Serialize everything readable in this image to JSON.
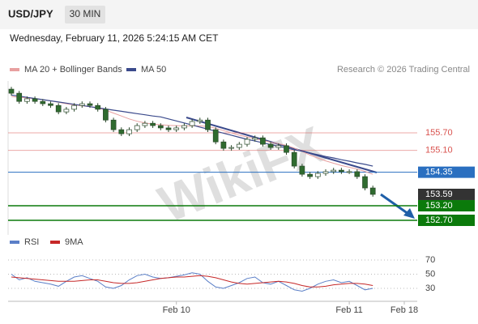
{
  "chart_data": [
    {
      "type": "candlestick",
      "title": "USD/JPY",
      "timeframe": "30 MIN",
      "subtitle": "Wednesday, February 11, 2026 5:24:15 AM CET",
      "credit": "Research © 2026 Trading Central",
      "watermark": "WikiFX",
      "up_color": "#ffffff",
      "down_color": "#2f6b2f",
      "wick_color": "#2b4a2b",
      "ylim": [
        152.2,
        157.48
      ],
      "open": [
        157.2,
        157.06,
        156.78,
        156.87,
        156.78,
        156.7,
        156.64,
        156.42,
        156.51,
        156.64,
        156.7,
        156.64,
        156.51,
        156.14,
        155.81,
        155.67,
        155.81,
        155.95,
        156.03,
        155.95,
        155.87,
        155.81,
        155.87,
        155.95,
        156.09,
        156.14,
        155.81,
        155.39,
        155.17,
        155.2,
        155.31,
        155.48,
        155.53,
        155.31,
        155.2,
        155.26,
        155.03,
        154.56,
        154.28,
        154.2,
        154.31,
        154.37,
        154.42,
        154.37,
        154.37,
        154.2,
        153.81,
        null,
        null,
        null,
        null
      ],
      "high": [
        157.28,
        157.14,
        156.95,
        156.95,
        156.86,
        156.78,
        156.72,
        156.59,
        156.72,
        156.78,
        156.78,
        156.72,
        156.59,
        156.22,
        155.89,
        155.89,
        156.03,
        156.11,
        156.11,
        156.03,
        155.95,
        155.95,
        156.03,
        156.17,
        156.22,
        156.22,
        155.89,
        155.47,
        155.28,
        155.39,
        155.56,
        155.61,
        155.61,
        155.39,
        155.34,
        155.34,
        155.11,
        154.64,
        154.36,
        154.39,
        154.45,
        154.5,
        154.5,
        154.45,
        154.45,
        154.28,
        153.89,
        null,
        null,
        null,
        null
      ],
      "low": [
        156.98,
        156.7,
        156.7,
        156.7,
        156.62,
        156.56,
        156.34,
        156.34,
        156.43,
        156.56,
        156.56,
        156.43,
        156.06,
        155.73,
        155.59,
        155.59,
        155.73,
        155.87,
        155.87,
        155.79,
        155.73,
        155.73,
        155.79,
        155.87,
        156.01,
        155.73,
        155.31,
        155.09,
        155.09,
        155.12,
        155.23,
        155.4,
        155.23,
        155.12,
        155.12,
        154.95,
        154.48,
        154.2,
        154.12,
        154.12,
        154.23,
        154.29,
        154.29,
        154.29,
        154.12,
        153.73,
        153.51,
        null,
        null,
        null,
        null
      ],
      "close": [
        157.06,
        156.78,
        156.87,
        156.78,
        156.7,
        156.64,
        156.42,
        156.51,
        156.64,
        156.7,
        156.64,
        156.51,
        156.14,
        155.81,
        155.67,
        155.81,
        155.95,
        156.03,
        155.95,
        155.87,
        155.81,
        155.87,
        155.95,
        156.09,
        156.14,
        155.81,
        155.39,
        155.17,
        155.2,
        155.31,
        155.48,
        155.53,
        155.31,
        155.2,
        155.26,
        155.03,
        154.56,
        154.28,
        154.2,
        154.31,
        154.37,
        154.42,
        154.37,
        154.37,
        154.2,
        153.81,
        153.59,
        null,
        null,
        null,
        null
      ],
      "series": [
        {
          "name": "MA 20 + Bollinger Bands",
          "color": "#e8a0a0",
          "values": [
            156.95,
            156.92,
            156.9,
            156.87,
            156.84,
            156.8,
            156.75,
            156.7,
            156.66,
            156.63,
            156.6,
            156.55,
            156.48,
            156.38,
            156.28,
            156.18,
            156.1,
            156.04,
            156.0,
            155.98,
            155.96,
            155.95,
            155.94,
            155.94,
            155.94,
            155.92,
            155.86,
            155.78,
            155.7,
            155.62,
            155.56,
            155.5,
            155.44,
            155.38,
            155.33,
            155.27,
            155.18,
            155.06,
            154.94,
            154.84,
            154.74,
            154.66,
            154.58,
            154.52,
            154.46,
            154.38,
            154.28,
            null,
            null,
            null,
            null
          ]
        },
        {
          "name": "MA 50",
          "color": "#3b4a8c",
          "values": [
            157.0,
            156.96,
            156.92,
            156.88,
            156.84,
            156.8,
            156.76,
            156.72,
            156.68,
            156.64,
            156.6,
            156.56,
            156.52,
            156.48,
            156.44,
            156.4,
            156.36,
            156.32,
            156.28,
            156.25,
            156.18,
            156.11,
            156.04,
            155.97,
            155.9,
            155.83,
            155.76,
            155.69,
            155.62,
            155.55,
            155.48,
            155.42,
            155.36,
            155.3,
            155.24,
            155.18,
            155.12,
            155.07,
            155.01,
            154.95,
            154.89,
            154.84,
            154.78,
            154.73,
            154.67,
            154.62,
            154.56,
            null,
            null,
            null,
            null
          ]
        }
      ],
      "levels": [
        {
          "value": 155.7,
          "label": "155.70",
          "color": "#d9534f",
          "line": true,
          "tag": false
        },
        {
          "value": 155.1,
          "label": "155.10",
          "color": "#d9534f",
          "line": true,
          "tag": false
        },
        {
          "value": 154.35,
          "label": "154.35",
          "color": "#2a6fc0",
          "line": true,
          "tag": true
        },
        {
          "value": 153.59,
          "label": "153.59",
          "color": "#333333",
          "line": false,
          "tag": true
        },
        {
          "value": 153.2,
          "label": "153.20",
          "color": "#0b7a0b",
          "line": true,
          "tag": true
        },
        {
          "value": 152.7,
          "label": "152.70",
          "color": "#0b7a0b",
          "line": true,
          "tag": true
        }
      ]
    },
    {
      "type": "line",
      "ylim": [
        14,
        82.6
      ],
      "yticks": [
        30,
        50,
        70
      ],
      "categories": [
        null,
        null,
        null,
        null,
        null,
        null,
        null,
        null,
        null,
        null,
        null,
        null,
        null,
        null,
        null,
        null,
        null,
        null,
        null,
        null,
        null,
        "Feb 10",
        null,
        null,
        null,
        null,
        null,
        null,
        null,
        null,
        null,
        null,
        null,
        null,
        null,
        null,
        null,
        null,
        null,
        null,
        null,
        null,
        null,
        "Feb 11",
        null,
        null,
        null,
        null,
        null,
        null,
        "Feb 18"
      ],
      "series": [
        {
          "name": "RSI",
          "color": "#5b7fc7",
          "values": [
            50,
            42,
            45,
            40,
            38,
            36,
            33,
            40,
            46,
            48,
            44,
            40,
            32,
            30,
            34,
            42,
            48,
            50,
            46,
            44,
            45,
            47,
            49,
            52,
            50,
            40,
            32,
            30,
            34,
            38,
            44,
            46,
            38,
            36,
            40,
            34,
            28,
            26,
            30,
            36,
            40,
            42,
            38,
            40,
            34,
            28,
            30,
            null,
            null,
            null,
            null
          ]
        },
        {
          "name": "9MA",
          "color": "#c62828",
          "values": [
            46,
            45,
            44,
            43,
            42,
            41,
            40,
            40,
            40,
            41,
            42,
            42,
            40,
            38,
            37,
            37,
            38,
            40,
            42,
            44,
            45,
            46,
            46,
            47,
            48,
            47,
            45,
            42,
            39,
            37,
            36,
            37,
            38,
            39,
            40,
            39,
            37,
            34,
            32,
            32,
            33,
            35,
            36,
            37,
            37,
            36,
            34,
            null,
            null,
            null,
            null
          ]
        }
      ]
    }
  ]
}
